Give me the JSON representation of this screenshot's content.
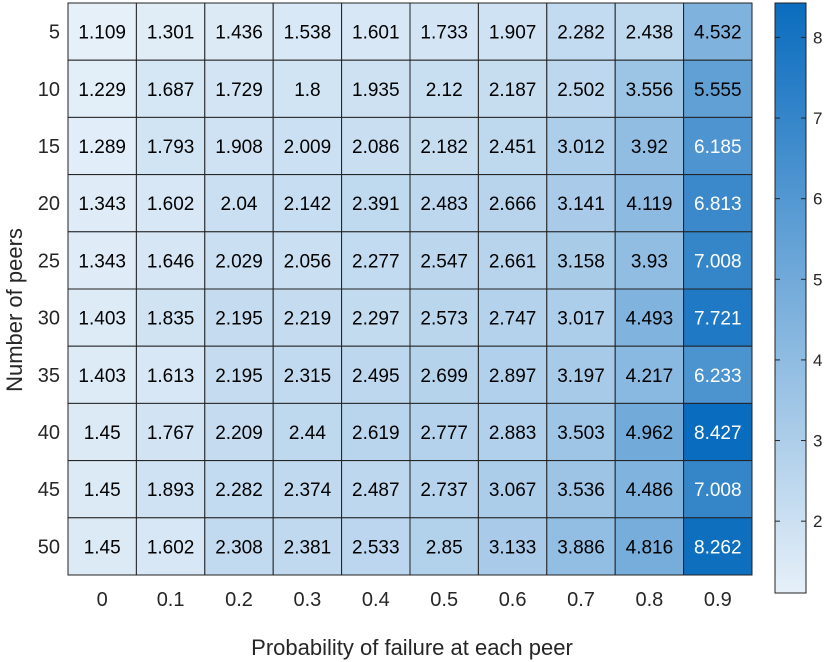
{
  "chart_data": {
    "type": "heatmap",
    "xlabel": "Probability of failure at each peer",
    "ylabel": "Number of peers",
    "x_categories": [
      "0",
      "0.1",
      "0.2",
      "0.3",
      "0.4",
      "0.5",
      "0.6",
      "0.7",
      "0.8",
      "0.9"
    ],
    "y_categories": [
      "5",
      "10",
      "15",
      "20",
      "25",
      "30",
      "35",
      "40",
      "45",
      "50"
    ],
    "values": [
      [
        "1.109",
        "1.301",
        "1.436",
        "1.538",
        "1.601",
        "1.733",
        "1.907",
        "2.282",
        "2.438",
        "4.532"
      ],
      [
        "1.229",
        "1.687",
        "1.729",
        "1.8",
        "1.935",
        "2.12",
        "2.187",
        "2.502",
        "3.556",
        "5.555"
      ],
      [
        "1.289",
        "1.793",
        "1.908",
        "2.009",
        "2.086",
        "2.182",
        "2.451",
        "3.012",
        "3.92",
        "6.185"
      ],
      [
        "1.343",
        "1.602",
        "2.04",
        "2.142",
        "2.391",
        "2.483",
        "2.666",
        "3.141",
        "4.119",
        "6.813"
      ],
      [
        "1.343",
        "1.646",
        "2.029",
        "2.056",
        "2.277",
        "2.547",
        "2.661",
        "3.158",
        "3.93",
        "7.008"
      ],
      [
        "1.403",
        "1.835",
        "2.195",
        "2.219",
        "2.297",
        "2.573",
        "2.747",
        "3.017",
        "4.493",
        "7.721"
      ],
      [
        "1.403",
        "1.613",
        "2.195",
        "2.315",
        "2.495",
        "2.699",
        "2.897",
        "3.197",
        "4.217",
        "6.233"
      ],
      [
        "1.45",
        "1.767",
        "2.209",
        "2.44",
        "2.619",
        "2.777",
        "2.883",
        "3.503",
        "4.962",
        "8.427"
      ],
      [
        "1.45",
        "1.893",
        "2.282",
        "2.374",
        "2.487",
        "2.737",
        "3.067",
        "3.536",
        "4.486",
        "7.008"
      ],
      [
        "1.45",
        "1.602",
        "2.308",
        "2.381",
        "2.533",
        "2.85",
        "3.133",
        "3.886",
        "4.816",
        "8.262"
      ]
    ],
    "colorbar": {
      "ticks": [
        "2",
        "3",
        "4",
        "5",
        "6",
        "7",
        "8"
      ],
      "range": [
        1.109,
        8.427
      ]
    },
    "colors": {
      "low": "#e6f0f9",
      "high": "#0a6cbe",
      "grid": "#222222",
      "dark_text": "#000000",
      "light_text": "#ffffff"
    },
    "grid": true,
    "legend": "colorbar-right"
  }
}
